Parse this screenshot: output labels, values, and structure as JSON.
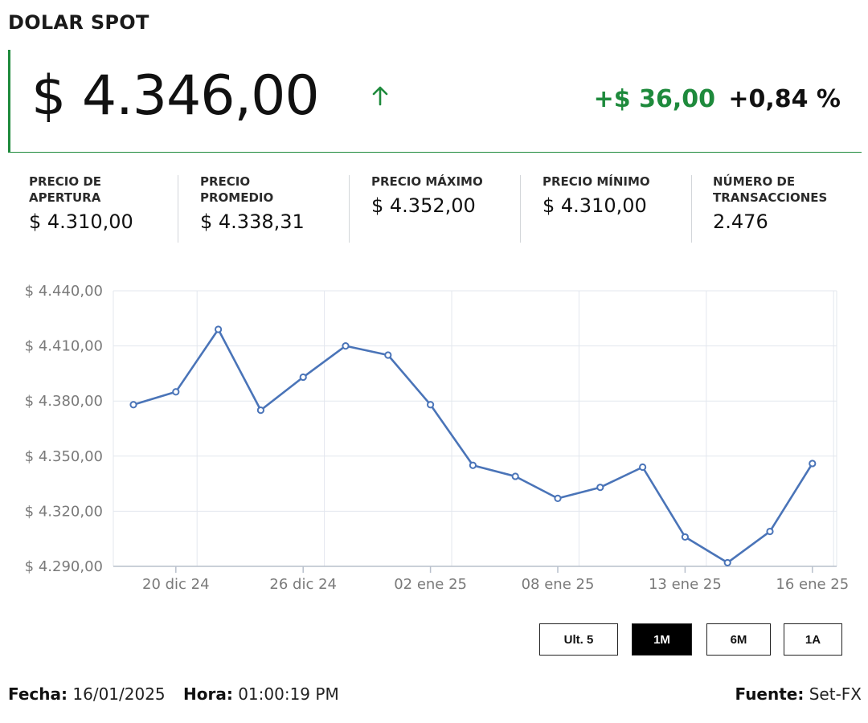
{
  "header": {
    "title": "DOLAR SPOT"
  },
  "quote": {
    "price": "$ 4.346,00",
    "direction_icon": "arrow-up-icon",
    "change_abs": "+$ 36,00",
    "change_pct": "+0,84 %",
    "up_color": "#1e8a3c"
  },
  "stats": [
    {
      "label_line1": "PRECIO DE",
      "label_line2": "APERTURA",
      "value": "$ 4.310,00"
    },
    {
      "label_line1": "PRECIO",
      "label_line2": "PROMEDIO",
      "value": "$ 4.338,31"
    },
    {
      "label_line1": "PRECIO MÁXIMO",
      "label_line2": "",
      "value": "$ 4.352,00"
    },
    {
      "label_line1": "PRECIO MÍNIMO",
      "label_line2": "",
      "value": "$ 4.310,00"
    },
    {
      "label_line1": "NÚMERO DE",
      "label_line2": "TRANSACCIONES",
      "value": "2.476"
    }
  ],
  "chart_data": {
    "type": "line",
    "ylim": [
      4290,
      4440
    ],
    "y_ticks": [
      4290,
      4320,
      4350,
      4380,
      4410,
      4440
    ],
    "y_tick_labels": [
      "$ 4.290,00",
      "$ 4.320,00",
      "$ 4.350,00",
      "$ 4.380,00",
      "$ 4.410,00",
      "$ 4.440,00"
    ],
    "x_tick_labels": [
      "20 dic 24",
      "26 dic 24",
      "02 ene 25",
      "08 ene 25",
      "13 ene 25",
      "16 ene 25"
    ],
    "x_tick_positions": [
      1,
      4,
      7,
      10,
      13,
      16
    ],
    "grid": true,
    "line_color": "#4a74b8",
    "series": [
      {
        "values": [
          4378,
          4385,
          4419,
          4375,
          4393,
          4410,
          4405,
          4378,
          4345,
          4339,
          4327,
          4333,
          4344,
          4306,
          4292,
          4309,
          4346
        ]
      }
    ]
  },
  "range_buttons": [
    {
      "label": "Ult. 5",
      "active": false
    },
    {
      "label": "1M",
      "active": true
    },
    {
      "label": "6M",
      "active": false
    },
    {
      "label": "1A",
      "active": false
    }
  ],
  "footer": {
    "fecha_label": "Fecha:",
    "fecha_value": "16/01/2025",
    "hora_label": "Hora:",
    "hora_value": "01:00:19 PM",
    "fuente_label": "Fuente:",
    "fuente_value": "Set-FX"
  }
}
